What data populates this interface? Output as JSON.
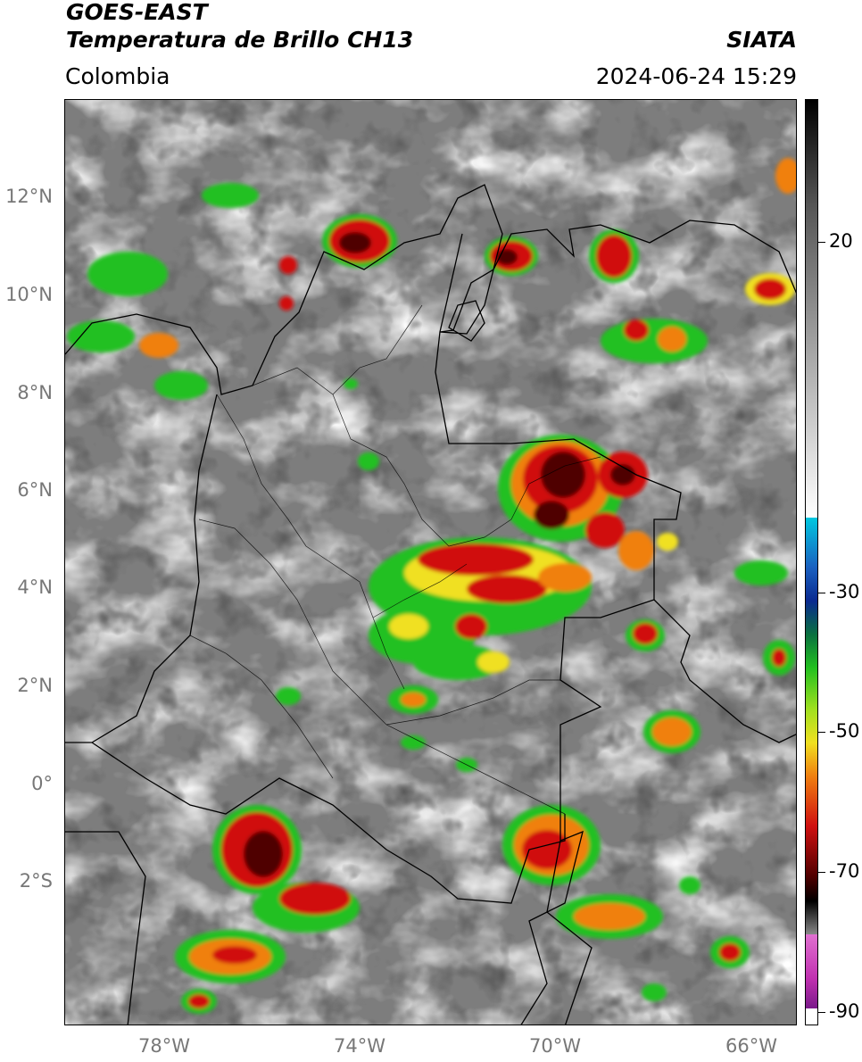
{
  "header": {
    "title_line1": "GOES-EAST",
    "title_line2": "Temperatura de Brillo CH13",
    "organization": "SIATA",
    "region": "Colombia",
    "datetime": "2024-06-24 15:29"
  },
  "map": {
    "lat_labels": [
      "12°N",
      "10°N",
      "8°N",
      "6°N",
      "4°N",
      "2°N",
      "0°",
      "2°S"
    ],
    "lon_labels": [
      "78°W",
      "74°W",
      "70°W",
      "66°W"
    ],
    "lat_range": [
      -5,
      14
    ],
    "lon_range": [
      -80,
      -65
    ]
  },
  "colorbar": {
    "labels": [
      "20",
      "-30",
      "-50",
      "-70",
      "-90"
    ],
    "range": [
      -92,
      41
    ],
    "colors": {
      "warm_gray": "#7a7a7a",
      "cold_white": "#ffffff",
      "cyan": "#00c8e0",
      "blue": "#0a2a90",
      "green": "#22c020",
      "yellow": "#f0e020",
      "orange": "#f08010",
      "red": "#d01010",
      "dark_red": "#500000",
      "black": "#000000",
      "magenta": "#c030b0",
      "purple": "#7a1a8a"
    }
  }
}
